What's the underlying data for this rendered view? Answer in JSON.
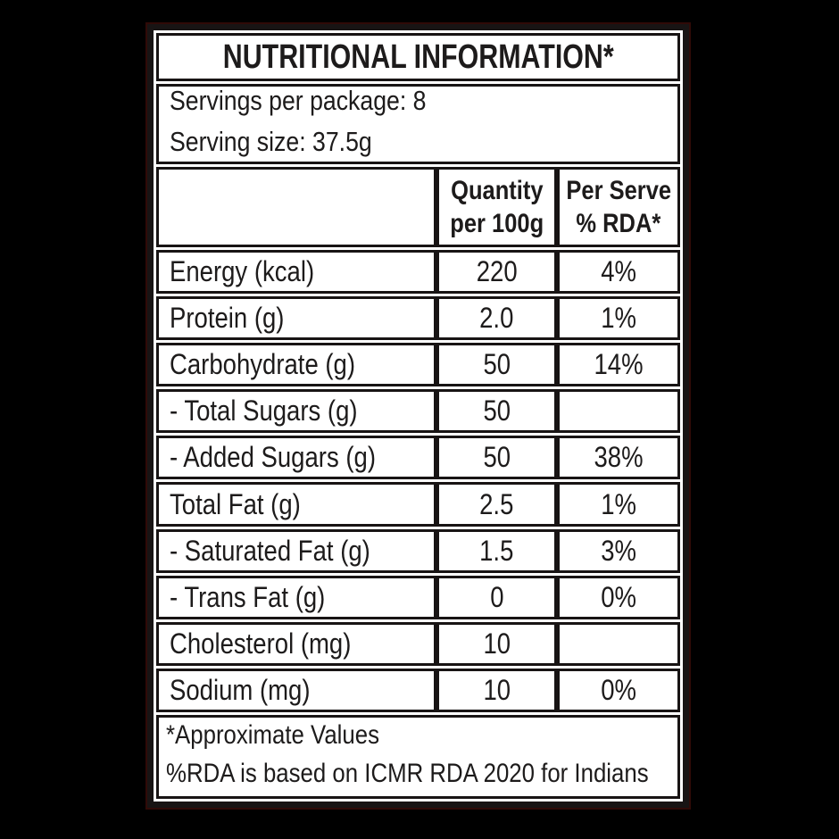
{
  "title": "NUTRITIONAL INFORMATION*",
  "servings": {
    "line1": "Servings per package: 8",
    "line2": "Serving size: 37.5g"
  },
  "header": {
    "blank": "",
    "quantity_line1": "Quantity",
    "quantity_line2": "per 100g",
    "rda_line1": "Per Serve",
    "rda_line2": "% RDA*"
  },
  "rows": [
    {
      "label": "Energy (kcal)",
      "quantity": "220",
      "rda": "4%"
    },
    {
      "label": "Protein (g)",
      "quantity": "2.0",
      "rda": "1%"
    },
    {
      "label": "Carbohydrate (g)",
      "quantity": "50",
      "rda": "14%"
    },
    {
      "label": "- Total Sugars (g)",
      "quantity": "50",
      "rda": ""
    },
    {
      "label": "- Added Sugars (g)",
      "quantity": "50",
      "rda": "38%"
    },
    {
      "label": "Total Fat (g)",
      "quantity": "2.5",
      "rda": "1%"
    },
    {
      "label": "- Saturated Fat (g)",
      "quantity": "1.5",
      "rda": "3%"
    },
    {
      "label": "- Trans Fat (g)",
      "quantity": "0",
      "rda": "0%"
    },
    {
      "label": "Cholesterol (mg)",
      "quantity": "10",
      "rda": ""
    },
    {
      "label": "Sodium (mg)",
      "quantity": "10",
      "rda": "0%"
    }
  ],
  "footer": {
    "line1": "*Approximate Values",
    "line2": "%RDA is based on ICMR RDA 2020 for Indians"
  },
  "colors": {
    "page_background": "#000000",
    "panel_background": "#ffffff",
    "border": "#181414",
    "text": "#1d1b1b",
    "outer_edge_tint": "#300a07"
  }
}
